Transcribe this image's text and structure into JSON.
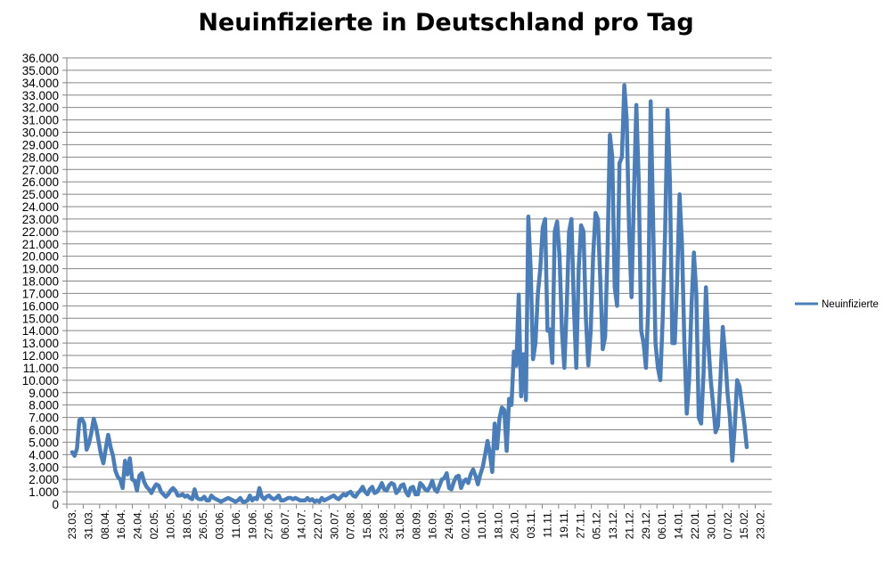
{
  "chart_data": {
    "type": "line",
    "title": "Neuinfizierte in Deutschland pro Tag",
    "xlabel": "",
    "ylabel": "",
    "ylim": [
      0,
      36000
    ],
    "ytick_step": 1000,
    "ytick_labels": [
      "0",
      "1.000",
      "2.000",
      "3.000",
      "4.000",
      "5.000",
      "6.000",
      "7.000",
      "8.000",
      "9.000",
      "10.000",
      "11.000",
      "12.000",
      "13.000",
      "14.000",
      "15.000",
      "16.000",
      "17.000",
      "18.000",
      "19.000",
      "20.000",
      "21.000",
      "22.000",
      "23.000",
      "24.000",
      "25.000",
      "26.000",
      "27.000",
      "28.000",
      "29.000",
      "30.000",
      "31.000",
      "32.000",
      "33.000",
      "34.000",
      "35.000",
      "36.000"
    ],
    "x_tick_labels": [
      "23.03.",
      "31.03.",
      "08.04.",
      "16.04.",
      "24.04.",
      "02.05.",
      "10.05.",
      "18.05.",
      "26.05.",
      "03.06.",
      "11.06.",
      "19.06.",
      "27.06.",
      "06.07.",
      "14.07.",
      "22.07.",
      "30.07.",
      "07.08.",
      "15.08.",
      "23.08.",
      "31.08.",
      "08.09.",
      "16.09.",
      "24.09.",
      "02.10.",
      "10.10.",
      "18.10.",
      "26.10.",
      "03.11.",
      "11.11.",
      "19.11.",
      "27.11.",
      "05.12.",
      "13.12.",
      "21.12.",
      "29.12.",
      "06.01.",
      "14.01.",
      "22.01.",
      "30.01.",
      "07.02.",
      "15.02.",
      "23.02."
    ],
    "grid": true,
    "legend": "right",
    "series": [
      {
        "name": "Neuinfizierte",
        "color": "#4A7EBB",
        "values": [
          4200,
          3900,
          4500,
          6800,
          6900,
          6500,
          4400,
          4900,
          5800,
          6900,
          6200,
          5100,
          4000,
          3300,
          4500,
          5600,
          4600,
          3900,
          2700,
          2200,
          2000,
          1300,
          3500,
          2400,
          3700,
          2000,
          1900,
          1100,
          2300,
          2500,
          1800,
          1400,
          1200,
          900,
          1300,
          1600,
          1500,
          1000,
          800,
          600,
          800,
          1100,
          1300,
          1100,
          700,
          700,
          800,
          600,
          700,
          500,
          400,
          1200,
          500,
          400,
          400,
          600,
          300,
          300,
          700,
          500,
          400,
          300,
          200,
          300,
          400,
          500,
          400,
          300,
          200,
          300,
          500,
          200,
          200,
          300,
          700,
          300,
          500,
          400,
          1300,
          600,
          400,
          600,
          700,
          500,
          400,
          500,
          700,
          300,
          300,
          400,
          500,
          500,
          400,
          500,
          400,
          300,
          300,
          300,
          500,
          300,
          400,
          200,
          300,
          200,
          500,
          300,
          400,
          500,
          600,
          700,
          500,
          400,
          600,
          800,
          700,
          900,
          1000,
          700,
          600,
          900,
          1100,
          1400,
          1000,
          800,
          1200,
          1400,
          900,
          1000,
          1300,
          1700,
          1200,
          1100,
          1500,
          1700,
          1600,
          900,
          1100,
          1500,
          1600,
          1000,
          700,
          1300,
          1400,
          800,
          800,
          1700,
          1500,
          1200,
          1100,
          1400,
          1900,
          1200,
          1000,
          1500,
          2000,
          2100,
          2500,
          1300,
          1200,
          1800,
          2200,
          2300,
          1300,
          1800,
          2000,
          1700,
          2400,
          2800,
          2300,
          1600,
          2400,
          3000,
          4000,
          5100,
          4100,
          2600,
          6500,
          4500,
          6900,
          7800,
          7600,
          4300,
          8500,
          8000,
          12300,
          11200,
          16900,
          8700,
          12100,
          8400,
          23200,
          19000,
          11700,
          13000,
          17000,
          19000,
          22300,
          23000,
          14000,
          14100,
          11400,
          22000,
          22800,
          20000,
          14000,
          11000,
          16000,
          22000,
          23000,
          16000,
          11000,
          19000,
          22500,
          22000,
          15000,
          11200,
          14000,
          20000,
          23500,
          23000,
          18000,
          12500,
          13500,
          20500,
          29800,
          28000,
          17500,
          16000,
          27500,
          28000,
          33800,
          31000,
          22000,
          16700,
          25000,
          32200,
          26000,
          14000,
          13000,
          11000,
          16000,
          32500,
          23000,
          13000,
          11000,
          10000,
          15000,
          22000,
          31800,
          26000,
          13000,
          13000,
          18000,
          25000,
          21000,
          13000,
          7300,
          10000,
          16000,
          20300,
          17000,
          7000,
          6500,
          10500,
          17500,
          13000,
          10000,
          8000,
          5800,
          6300,
          10000,
          14300,
          12000,
          9000,
          7000,
          3500,
          6200,
          10000,
          9500,
          8000,
          6500,
          4600
        ]
      }
    ]
  }
}
